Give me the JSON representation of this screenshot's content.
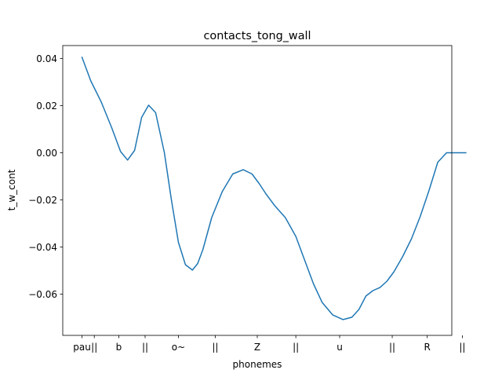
{
  "chart_data": {
    "type": "line",
    "title": "contacts_tong_wall",
    "xlabel": "phonemes",
    "ylabel": "t_w_cont",
    "xlim": [
      -1.1,
      21.1
    ],
    "ylim": [
      -0.0775,
      0.0455
    ],
    "grid": false,
    "legend": "none",
    "yticks": [
      0.04,
      0.02,
      0.0,
      -0.02,
      -0.04,
      -0.06
    ],
    "ytick_labels": [
      "0.04",
      "0.02",
      "0.00",
      "−0.02",
      "−0.04",
      "−0.06"
    ],
    "xticks": [
      {
        "x": 0.0,
        "label": "pau"
      },
      {
        "x": 0.7,
        "label": "||"
      },
      {
        "x": 2.1,
        "label": "b"
      },
      {
        "x": 3.6,
        "label": "||"
      },
      {
        "x": 5.5,
        "label": "o~"
      },
      {
        "x": 7.6,
        "label": "||"
      },
      {
        "x": 10.0,
        "label": "Z"
      },
      {
        "x": 12.2,
        "label": "||"
      },
      {
        "x": 14.7,
        "label": "u"
      },
      {
        "x": 17.7,
        "label": "||"
      },
      {
        "x": 19.7,
        "label": "R"
      },
      {
        "x": 21.7,
        "label": "||"
      }
    ],
    "series": [
      {
        "color": "#1f77b4",
        "x": [
          0.0,
          0.5,
          1.1,
          1.7,
          2.2,
          2.6,
          3.0,
          3.4,
          3.8,
          4.2,
          4.7,
          5.1,
          5.5,
          5.9,
          6.3,
          6.6,
          6.9,
          7.4,
          8.0,
          8.6,
          9.2,
          9.7,
          10.1,
          10.5,
          11.0,
          11.6,
          12.2,
          12.7,
          13.2,
          13.7,
          14.3,
          14.9,
          15.4,
          15.8,
          16.2,
          16.6,
          17.0,
          17.4,
          17.8,
          18.3,
          18.8,
          19.3,
          19.8,
          20.3,
          20.8,
          21.2,
          21.6,
          21.9
        ],
        "y": [
          0.0405,
          0.0305,
          0.0215,
          0.0105,
          0.0005,
          -0.0031,
          0.001,
          0.015,
          0.0202,
          0.017,
          0.0,
          -0.02,
          -0.038,
          -0.0475,
          -0.0498,
          -0.047,
          -0.041,
          -0.0275,
          -0.0165,
          -0.009,
          -0.0072,
          -0.009,
          -0.013,
          -0.0175,
          -0.0225,
          -0.0275,
          -0.0355,
          -0.0455,
          -0.0555,
          -0.0635,
          -0.0688,
          -0.0708,
          -0.0698,
          -0.0665,
          -0.0608,
          -0.0585,
          -0.0572,
          -0.0545,
          -0.0505,
          -0.044,
          -0.0365,
          -0.027,
          -0.016,
          -0.004,
          0.0,
          0.0,
          0.0,
          0.0
        ]
      }
    ]
  }
}
